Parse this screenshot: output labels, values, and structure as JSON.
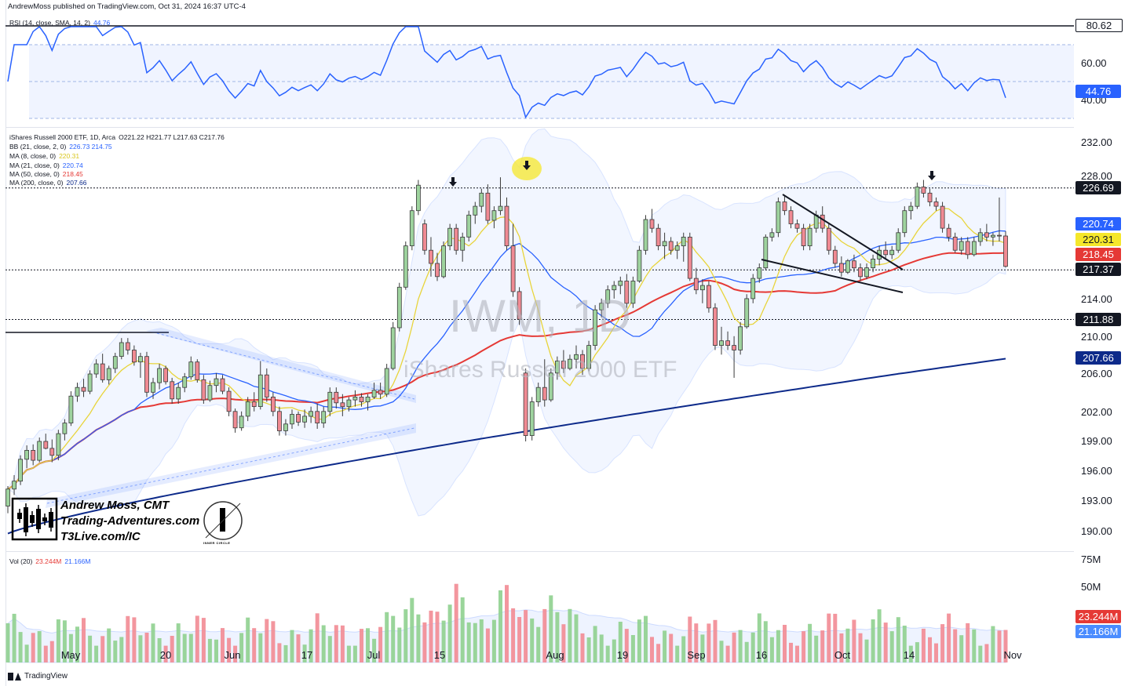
{
  "header": "AndrewMoss published on TradingView.com, Oct 31, 2024 16:37 UTC-4",
  "rsi": {
    "legend": "RSI (14, close, SMA, 14, 2)",
    "legend_value": "44.76",
    "axis_labels": [
      "60.00",
      "40.00"
    ],
    "tag_upper": "80.62",
    "tag_current": "44.76"
  },
  "price": {
    "legend_title": "iShares Russell 2000 ETF, 1D, Arca",
    "ohlc": "O221.22  H221.77  L217.63  C217.76",
    "indicators": [
      {
        "label": "BB (21, close, 2, 0)",
        "values": "226.73  214.75",
        "color": "#2962ff"
      },
      {
        "label": "MA (8, close, 0)",
        "values": "220.31",
        "color": "#e8d43a"
      },
      {
        "label": "MA (21, close, 0)",
        "values": "220.74",
        "color": "#2962ff"
      },
      {
        "label": "MA (50, close, 0)",
        "values": "218.45",
        "color": "#e53935"
      },
      {
        "label": "MA (200, close, 0)",
        "values": "207.66",
        "color": "#0d2a8a"
      }
    ],
    "axis_labels": [
      "232.00",
      "228.00",
      "214.00",
      "210.00",
      "206.00",
      "202.00",
      "199.00",
      "196.00",
      "193.00",
      "190.00"
    ],
    "tags": [
      {
        "text": "226.69",
        "bg": "#131722",
        "fg": "#ffffff"
      },
      {
        "text": "220.74",
        "bg": "#2962ff",
        "fg": "#ffffff"
      },
      {
        "text": "220.31",
        "bg": "#f5e72b",
        "fg": "#131722"
      },
      {
        "text": "218.45",
        "bg": "#e53935",
        "fg": "#ffffff"
      },
      {
        "text": "217.37",
        "bg": "#131722",
        "fg": "#ffffff"
      },
      {
        "text": "211.88",
        "bg": "#131722",
        "fg": "#ffffff"
      },
      {
        "text": "207.66",
        "bg": "#0d2a8a",
        "fg": "#ffffff"
      }
    ],
    "watermark_symbol": "IWM, 1D",
    "watermark_name": "iShares Russell 2000 ETF"
  },
  "branding": {
    "line1": "Andrew Moss, CMT",
    "line2": "Trading-Adventures.com",
    "line3": "T3Live.com/IC",
    "logo_text": "INNER CIRCLE"
  },
  "volume": {
    "legend": "Vol (20)",
    "legend_v1": "23.244M",
    "legend_v2": "21.166M",
    "axis_labels": [
      "75M",
      "50M"
    ],
    "tag1": "23.244M",
    "tag2": "21.166M"
  },
  "dates": [
    "May",
    "20",
    "Jun",
    "17",
    "Jul",
    "15",
    "Aug",
    "19",
    "Sep",
    "16",
    "Oct",
    "14",
    "Nov"
  ],
  "footer": "TradingView",
  "chart_data": {
    "type": "candlestick",
    "ohlc": [
      [
        192.5,
        194.5,
        191.8,
        194.2
      ],
      [
        194.2,
        195.6,
        193.6,
        195.0
      ],
      [
        195.0,
        197.6,
        194.6,
        197.2
      ],
      [
        197.2,
        198.6,
        196.3,
        198.1
      ],
      [
        198.1,
        198.7,
        196.6,
        197.1
      ],
      [
        197.1,
        199.4,
        196.9,
        199.0
      ],
      [
        199.0,
        199.8,
        198.2,
        198.3
      ],
      [
        198.3,
        199.2,
        196.9,
        197.6
      ],
      [
        197.6,
        200.2,
        197.1,
        199.8
      ],
      [
        199.8,
        201.3,
        199.1,
        200.9
      ],
      [
        200.9,
        204.2,
        200.6,
        203.7
      ],
      [
        203.7,
        205.1,
        203.1,
        204.6
      ],
      [
        204.6,
        205.5,
        203.6,
        204.2
      ],
      [
        204.2,
        206.4,
        203.9,
        206.0
      ],
      [
        206.0,
        207.6,
        205.6,
        207.1
      ],
      [
        207.1,
        208.2,
        205.1,
        205.4
      ],
      [
        205.4,
        206.9,
        204.9,
        206.6
      ],
      [
        206.6,
        208.3,
        206.1,
        207.9
      ],
      [
        207.9,
        209.9,
        207.6,
        209.4
      ],
      [
        209.4,
        209.9,
        208.1,
        208.6
      ],
      [
        208.6,
        209.1,
        206.9,
        207.3
      ],
      [
        207.3,
        208.3,
        205.6,
        207.9
      ],
      [
        207.9,
        208.4,
        203.6,
        204.1
      ],
      [
        204.1,
        205.6,
        203.4,
        205.1
      ],
      [
        205.1,
        207.1,
        204.4,
        206.6
      ],
      [
        206.6,
        206.9,
        204.9,
        205.2
      ],
      [
        205.2,
        205.6,
        202.9,
        203.4
      ],
      [
        203.4,
        205.1,
        202.9,
        204.6
      ],
      [
        204.6,
        206.1,
        204.1,
        205.7
      ],
      [
        205.7,
        207.9,
        205.4,
        207.3
      ],
      [
        207.3,
        207.6,
        205.1,
        205.4
      ],
      [
        205.4,
        205.9,
        202.9,
        203.3
      ],
      [
        203.3,
        205.3,
        203.1,
        204.8
      ],
      [
        204.8,
        206.1,
        204.1,
        205.5
      ],
      [
        205.5,
        205.9,
        203.9,
        204.2
      ],
      [
        204.2,
        204.6,
        201.6,
        202.1
      ],
      [
        202.1,
        202.4,
        199.9,
        200.4
      ],
      [
        200.4,
        202.1,
        200.1,
        201.6
      ],
      [
        201.6,
        203.6,
        201.1,
        203.1
      ],
      [
        203.1,
        204.1,
        202.1,
        202.6
      ],
      [
        202.6,
        207.4,
        202.3,
        205.9
      ],
      [
        205.9,
        206.6,
        203.1,
        203.6
      ],
      [
        203.6,
        204.1,
        201.6,
        202.1
      ],
      [
        202.1,
        202.6,
        199.6,
        200.1
      ],
      [
        200.1,
        201.3,
        199.6,
        200.8
      ],
      [
        200.8,
        202.3,
        200.3,
        201.8
      ],
      [
        201.8,
        202.1,
        200.6,
        201.0
      ],
      [
        201.0,
        202.3,
        200.4,
        201.6
      ],
      [
        201.6,
        202.6,
        200.9,
        202.1
      ],
      [
        202.1,
        202.9,
        200.3,
        200.9
      ],
      [
        200.9,
        202.6,
        200.4,
        202.1
      ],
      [
        202.1,
        204.6,
        201.6,
        204.1
      ],
      [
        204.1,
        204.6,
        202.4,
        203.0
      ],
      [
        203.0,
        203.9,
        201.6,
        202.6
      ],
      [
        202.6,
        203.6,
        202.1,
        203.3
      ],
      [
        203.3,
        204.3,
        202.6,
        203.6
      ],
      [
        203.6,
        204.0,
        202.6,
        203.1
      ],
      [
        203.1,
        203.9,
        202.2,
        203.6
      ],
      [
        203.6,
        205.1,
        203.4,
        204.3
      ],
      [
        204.3,
        205.1,
        203.4,
        203.9
      ],
      [
        203.9,
        207.1,
        203.6,
        206.6
      ],
      [
        206.6,
        211.6,
        206.4,
        211.0
      ],
      [
        211.0,
        215.9,
        210.6,
        215.4
      ],
      [
        215.4,
        220.6,
        215.1,
        220.1
      ],
      [
        220.1,
        224.6,
        219.6,
        224.1
      ],
      [
        224.1,
        227.6,
        223.6,
        227.0
      ],
      [
        222.6,
        223.1,
        219.1,
        219.6
      ],
      [
        219.6,
        221.1,
        216.6,
        218.1
      ],
      [
        218.1,
        219.3,
        216.1,
        216.6
      ],
      [
        216.6,
        220.6,
        216.4,
        220.1
      ],
      [
        220.1,
        222.6,
        219.6,
        222.1
      ],
      [
        222.1,
        222.6,
        219.1,
        219.6
      ],
      [
        219.6,
        221.6,
        218.3,
        221.1
      ],
      [
        221.1,
        224.1,
        220.6,
        223.6
      ],
      [
        223.6,
        225.1,
        222.6,
        224.6
      ],
      [
        224.6,
        226.6,
        223.9,
        226.1
      ],
      [
        226.1,
        227.1,
        222.6,
        223.0
      ],
      [
        223.0,
        224.6,
        222.1,
        224.1
      ],
      [
        224.1,
        227.9,
        223.6,
        224.6
      ],
      [
        224.6,
        225.6,
        219.6,
        220.1
      ],
      [
        220.1,
        222.6,
        214.3,
        214.9
      ],
      [
        214.9,
        215.4,
        211.3,
        211.9
      ],
      [
        206.1,
        206.6,
        199.0,
        199.6
      ],
      [
        199.6,
        203.6,
        199.1,
        203.1
      ],
      [
        203.1,
        205.1,
        202.6,
        204.6
      ],
      [
        204.6,
        207.6,
        202.6,
        203.3
      ],
      [
        203.3,
        206.6,
        203.1,
        206.1
      ],
      [
        206.1,
        207.9,
        205.4,
        207.4
      ],
      [
        207.4,
        208.6,
        206.1,
        206.6
      ],
      [
        206.6,
        208.1,
        206.4,
        207.6
      ],
      [
        207.6,
        209.1,
        206.6,
        208.1
      ],
      [
        208.1,
        208.6,
        205.9,
        206.6
      ],
      [
        206.6,
        209.6,
        206.3,
        209.1
      ],
      [
        209.1,
        213.4,
        208.6,
        212.9
      ],
      [
        212.9,
        214.1,
        212.1,
        213.6
      ],
      [
        213.6,
        215.6,
        213.1,
        215.1
      ],
      [
        215.1,
        216.1,
        214.1,
        215.6
      ],
      [
        215.6,
        216.6,
        214.6,
        216.1
      ],
      [
        216.1,
        216.9,
        213.1,
        213.6
      ],
      [
        213.6,
        216.6,
        213.1,
        216.1
      ],
      [
        216.1,
        220.1,
        215.9,
        219.6
      ],
      [
        219.6,
        223.6,
        219.1,
        223.1
      ],
      [
        223.1,
        224.3,
        221.6,
        222.1
      ],
      [
        222.1,
        222.6,
        219.6,
        220.1
      ],
      [
        220.1,
        221.6,
        218.6,
        220.6
      ],
      [
        220.6,
        221.1,
        219.1,
        219.6
      ],
      [
        219.6,
        220.6,
        218.6,
        220.1
      ],
      [
        220.1,
        221.6,
        218.3,
        221.1
      ],
      [
        221.1,
        221.6,
        216.1,
        216.4
      ],
      [
        216.4,
        217.6,
        214.6,
        215.1
      ],
      [
        215.1,
        216.3,
        213.6,
        215.6
      ],
      [
        215.6,
        216.1,
        212.6,
        213.1
      ],
      [
        213.1,
        213.6,
        208.6,
        209.1
      ],
      [
        209.1,
        211.1,
        208.1,
        209.6
      ],
      [
        209.6,
        210.6,
        208.6,
        209.1
      ],
      [
        209.1,
        210.1,
        205.6,
        208.6
      ],
      [
        208.6,
        211.6,
        208.1,
        211.1
      ],
      [
        211.1,
        214.6,
        210.9,
        214.1
      ],
      [
        214.1,
        216.9,
        213.6,
        216.4
      ],
      [
        216.4,
        218.1,
        215.9,
        217.6
      ],
      [
        217.6,
        221.4,
        217.3,
        221.1
      ],
      [
        221.1,
        222.1,
        220.6,
        221.6
      ],
      [
        221.6,
        225.6,
        221.1,
        225.1
      ],
      [
        225.1,
        225.9,
        223.6,
        224.1
      ],
      [
        224.1,
        224.6,
        222.1,
        222.6
      ],
      [
        222.6,
        223.1,
        221.6,
        222.1
      ],
      [
        222.1,
        222.6,
        219.6,
        220.1
      ],
      [
        220.1,
        222.6,
        219.6,
        222.1
      ],
      [
        222.1,
        224.1,
        221.6,
        223.6
      ],
      [
        223.6,
        224.6,
        221.6,
        222.1
      ],
      [
        222.1,
        222.6,
        219.1,
        219.6
      ],
      [
        219.6,
        220.1,
        217.6,
        218.1
      ],
      [
        218.1,
        218.9,
        216.6,
        217.1
      ],
      [
        217.1,
        218.6,
        216.9,
        218.4
      ],
      [
        218.4,
        219.1,
        217.1,
        217.6
      ],
      [
        217.6,
        218.1,
        216.1,
        216.6
      ],
      [
        216.6,
        218.1,
        216.3,
        217.6
      ],
      [
        217.6,
        219.1,
        217.1,
        218.6
      ],
      [
        218.6,
        220.1,
        217.9,
        219.6
      ],
      [
        219.6,
        220.6,
        218.6,
        219.1
      ],
      [
        219.1,
        220.1,
        218.6,
        219.6
      ],
      [
        219.6,
        222.1,
        219.3,
        221.6
      ],
      [
        221.6,
        224.6,
        221.1,
        224.1
      ],
      [
        224.1,
        225.1,
        223.1,
        224.6
      ],
      [
        224.6,
        227.3,
        224.3,
        226.8
      ],
      [
        226.8,
        227.6,
        225.6,
        226.1
      ],
      [
        226.1,
        226.6,
        224.6,
        225.1
      ],
      [
        225.1,
        225.6,
        224.1,
        224.6
      ],
      [
        224.6,
        225.1,
        221.6,
        222.1
      ],
      [
        222.1,
        222.6,
        220.6,
        221.1
      ],
      [
        221.1,
        221.6,
        219.3,
        219.6
      ],
      [
        219.6,
        221.1,
        219.1,
        220.6
      ],
      [
        220.6,
        221.1,
        218.6,
        219.1
      ],
      [
        219.1,
        221.1,
        218.9,
        220.6
      ],
      [
        220.6,
        222.1,
        220.1,
        221.6
      ],
      [
        221.6,
        222.6,
        220.6,
        221.1
      ],
      [
        221.1,
        221.6,
        220.1,
        221.3
      ],
      [
        221.3,
        225.6,
        220.6,
        221.22
      ],
      [
        221.22,
        221.77,
        217.63,
        217.76
      ]
    ],
    "ma_levels_last": {
      "ma8": 220.31,
      "ma21": 220.74,
      "ma50": 218.45,
      "ma200": 207.66,
      "bb_upper": 226.73,
      "bb_lower": 214.75
    },
    "horizontal_levels": [
      226.69,
      217.37,
      211.88
    ],
    "rsi_last": 44.76,
    "volume_last": {
      "vol": 23.244,
      "vol_ma": 21.166,
      "unit": "M"
    },
    "price_axis": [
      190,
      232
    ]
  }
}
